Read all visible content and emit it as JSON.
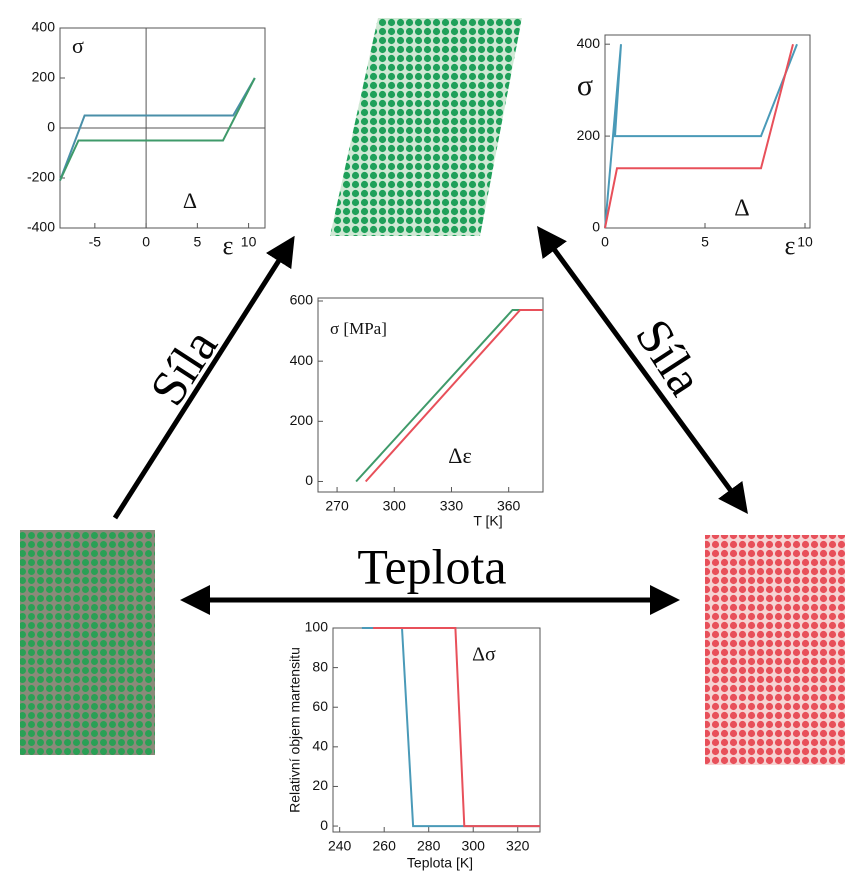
{
  "labels": {
    "force_left": "Síla",
    "force_right": "Síla",
    "temperature": "Teplota"
  },
  "charts": [
    {
      "type": "line",
      "xlim": [
        -8.4,
        11.6
      ],
      "ylim": [
        -400,
        400
      ],
      "xticks": [
        -5,
        0,
        5,
        10
      ],
      "yticks": [
        -400,
        -200,
        0,
        200,
        400
      ],
      "labels": [
        "σ",
        "Δ",
        "ε"
      ],
      "series": [
        {
          "color": "#4a8fa8",
          "x": [
            -8.4,
            -6,
            8.5,
            10.6
          ],
          "y": [
            -210,
            50,
            50,
            200
          ]
        },
        {
          "color": "#3f9a6a",
          "x": [
            -8.4,
            -6.6,
            7.5,
            10.6
          ],
          "y": [
            -210,
            -50,
            -50,
            200
          ]
        }
      ]
    },
    {
      "type": "line",
      "xlim": [
        0,
        10.25
      ],
      "ylim": [
        0,
        420
      ],
      "xticks": [
        0,
        5,
        10
      ],
      "yticks": [
        0,
        200,
        400
      ],
      "labels": [
        "σ",
        "Δ",
        "ε"
      ],
      "series": [
        {
          "color": "#4a9ab8",
          "x": [
            0,
            0.4,
            0.8,
            0.5,
            7.8,
            9.6
          ],
          "y": [
            0,
            200,
            400,
            200,
            200,
            400
          ]
        },
        {
          "color": "#e8505a",
          "x": [
            0,
            0.6,
            7.8,
            9.4
          ],
          "y": [
            0,
            130,
            130,
            400
          ]
        }
      ]
    },
    {
      "type": "line",
      "xlim": [
        260,
        378
      ],
      "ylim": [
        -35,
        610
      ],
      "xticks": [
        270,
        300,
        330,
        360
      ],
      "yticks": [
        0,
        200,
        400,
        600
      ],
      "labels": [
        "σ [MPa]",
        "Δε"
      ],
      "xlabel": "T [K]",
      "series": [
        {
          "color": "#3f9a6a",
          "x": [
            280,
            362,
            378
          ],
          "y": [
            0,
            570,
            570
          ]
        },
        {
          "color": "#e8505a",
          "x": [
            285,
            366,
            378
          ],
          "y": [
            0,
            570,
            570
          ]
        }
      ]
    },
    {
      "type": "line",
      "xlim": [
        237,
        330
      ],
      "ylim": [
        -3,
        100
      ],
      "xticks": [
        240,
        260,
        280,
        300,
        320
      ],
      "yticks": [
        0,
        20,
        40,
        60,
        80,
        100
      ],
      "labels": [
        "Δσ"
      ],
      "xlabel": "Teplota [K]",
      "ylabel": "Relativní objem martensitu",
      "series": [
        {
          "color": "#4a9ab8",
          "x": [
            250,
            268,
            273,
            330
          ],
          "y": [
            100,
            100,
            0,
            0
          ]
        },
        {
          "color": "#e8505a",
          "x": [
            255,
            292,
            296,
            330
          ],
          "y": [
            100,
            100,
            0,
            0
          ]
        }
      ]
    }
  ]
}
